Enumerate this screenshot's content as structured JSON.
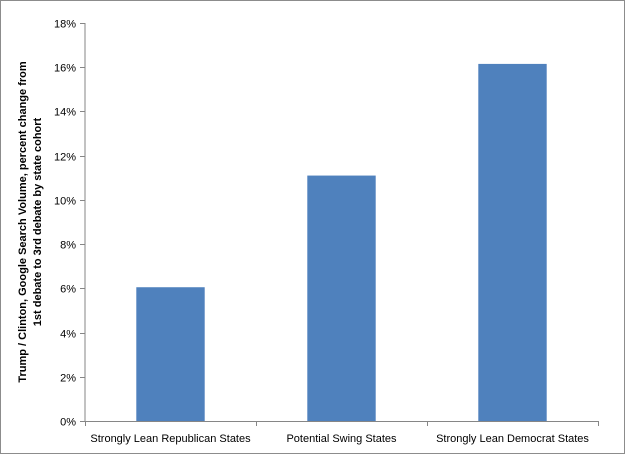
{
  "chart_data": {
    "type": "bar",
    "categories": [
      "Strongly Lean Republican States",
      "Potential Swing States",
      "Strongly Lean Democrat States"
    ],
    "values": [
      6.05,
      11.1,
      16.15
    ],
    "yticks": [
      "0%",
      "2%",
      "4%",
      "6%",
      "8%",
      "10%",
      "12%",
      "14%",
      "16%",
      "18%"
    ],
    "ylim": [
      0,
      18
    ],
    "ylabel_lines": [
      "Trump / Clinton, Google Search Volume, percent change from",
      "1st debate to 3rd debate by state cohort"
    ],
    "bar_color": "#4f81bd",
    "grid": false,
    "legend": "none"
  }
}
